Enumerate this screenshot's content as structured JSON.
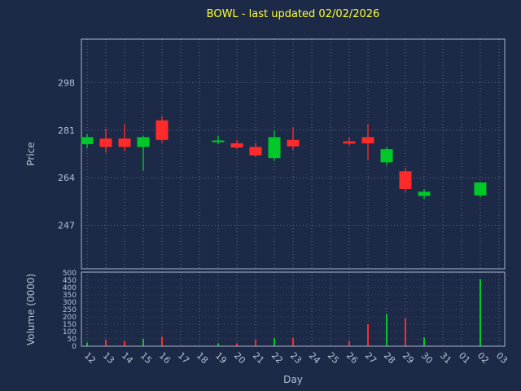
{
  "title": "BOWL - last updated 02/02/2026",
  "colors": {
    "background": "#1c2a48",
    "up": "#00c829",
    "down": "#ff2b2b",
    "title": "#ffff33",
    "axis_text": "#b7c0d4",
    "grid": "#8593ab",
    "border": "#aab4c8"
  },
  "chart_data": {
    "type": "candlestick",
    "title": "BOWL - last updated 02/02/2026",
    "xlabel": "Day",
    "ylabel_price": "Price",
    "ylabel_volume": "Volume (0000)",
    "x_categories": [
      "12",
      "13",
      "14",
      "15",
      "16",
      "17",
      "18",
      "19",
      "20",
      "21",
      "22",
      "23",
      "24",
      "25",
      "26",
      "27",
      "28",
      "29",
      "30",
      "31",
      "01",
      "02",
      "03"
    ],
    "price_ticks": [
      247,
      264,
      281,
      298
    ],
    "price_range": [
      231.5,
      313.5
    ],
    "volume_ticks": [
      0,
      50,
      100,
      150,
      200,
      250,
      300,
      350,
      400,
      450,
      500
    ],
    "volume_range": [
      0,
      505
    ],
    "grid": true,
    "candles": [
      {
        "day": "12",
        "open": 276.0,
        "high": 279.5,
        "low": 274.5,
        "close": 278.5,
        "volume": 25
      },
      {
        "day": "13",
        "open": 278.0,
        "high": 281.5,
        "low": 273.0,
        "close": 275.0,
        "volume": 45
      },
      {
        "day": "14",
        "open": 278.0,
        "high": 283.0,
        "low": 273.5,
        "close": 275.0,
        "volume": 35
      },
      {
        "day": "15",
        "open": 275.0,
        "high": 279.0,
        "low": 266.5,
        "close": 278.5,
        "volume": 50
      },
      {
        "day": "16",
        "open": 284.5,
        "high": 286.0,
        "low": 276.5,
        "close": 277.5,
        "volume": 65
      },
      {
        "day": "19",
        "open": 277.0,
        "high": 279.0,
        "low": 276.0,
        "close": 277.3,
        "volume": 20
      },
      {
        "day": "20",
        "open": 276.3,
        "high": 277.5,
        "low": 274.3,
        "close": 274.8,
        "volume": 20
      },
      {
        "day": "21",
        "open": 275.0,
        "high": 276.5,
        "low": 271.5,
        "close": 272.0,
        "volume": 45
      },
      {
        "day": "22",
        "open": 271.0,
        "high": 281.0,
        "low": 270.0,
        "close": 278.5,
        "volume": 55
      },
      {
        "day": "23",
        "open": 277.5,
        "high": 282.0,
        "low": 274.0,
        "close": 275.2,
        "volume": 55
      },
      {
        "day": "26",
        "open": 277.0,
        "high": 278.5,
        "low": 275.5,
        "close": 276.2,
        "volume": 35
      },
      {
        "day": "27",
        "open": 278.5,
        "high": 283.0,
        "low": 270.5,
        "close": 276.3,
        "volume": 150
      },
      {
        "day": "28",
        "open": 269.5,
        "high": 275.0,
        "low": 268.5,
        "close": 274.2,
        "volume": 220
      },
      {
        "day": "29",
        "open": 266.3,
        "high": 267.5,
        "low": 259.0,
        "close": 260.0,
        "volume": 190
      },
      {
        "day": "30",
        "open": 257.5,
        "high": 260.0,
        "low": 256.5,
        "close": 259.0,
        "volume": 60
      },
      {
        "day": "02",
        "open": 257.7,
        "high": 262.5,
        "low": 257.0,
        "close": 262.3,
        "volume": 455
      }
    ]
  }
}
